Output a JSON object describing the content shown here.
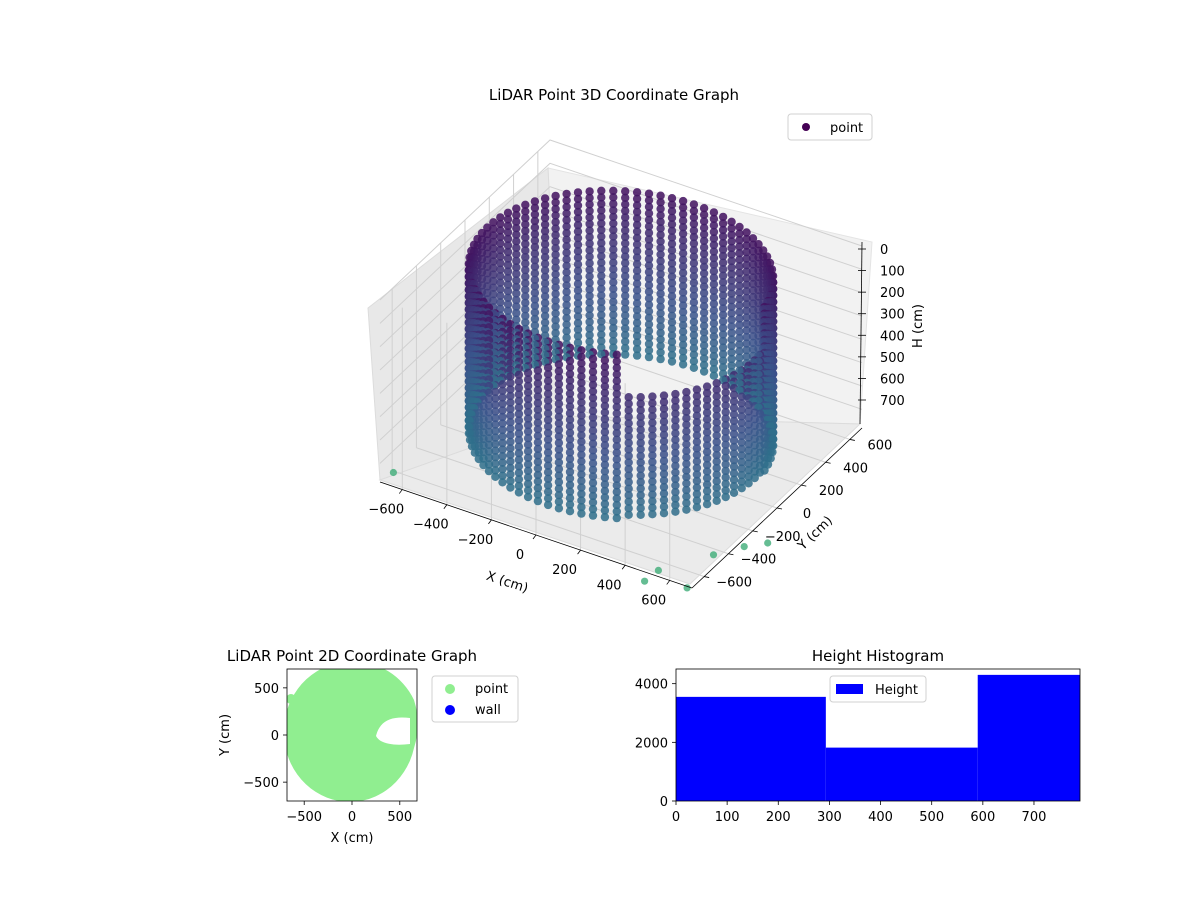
{
  "chart_data": [
    {
      "type": "scatter3d",
      "title": "LiDAR Point 3D Coordinate Graph",
      "xlabel": "X (cm)",
      "ylabel": "Y (cm)",
      "zlabel": "H (cm)",
      "xlim": [
        -700,
        700
      ],
      "ylim": [
        -700,
        700
      ],
      "zlim": [
        0,
        780
      ],
      "z_inverted": true,
      "xticks": [
        "−600",
        "−400",
        "−200",
        "0",
        "200",
        "400",
        "600"
      ],
      "yticks": [
        "−600",
        "−400",
        "−200",
        "0",
        "200",
        "400",
        "600"
      ],
      "zticks": [
        "0",
        "100",
        "200",
        "300",
        "400",
        "500",
        "600",
        "700"
      ],
      "legend": {
        "placement": "top-right",
        "entries": [
          {
            "label": "point",
            "color": "#440154"
          }
        ]
      },
      "colormap": "viridis",
      "series": [
        {
          "name": "point",
          "shape": "cylindrical wall",
          "radius_cm": 600,
          "height_range_cm": [
            0,
            700
          ],
          "gap_angle_deg": [
            -60,
            5
          ]
        }
      ]
    },
    {
      "type": "scatter",
      "title": "LiDAR Point 2D Coordinate Graph",
      "xlabel": "X (cm)",
      "ylabel": "Y (cm)",
      "xlim": [
        -680,
        680
      ],
      "ylim": [
        -700,
        700
      ],
      "xticks": [
        "−500",
        "0",
        "500"
      ],
      "yticks": [
        "−500",
        "0",
        "500"
      ],
      "legend": {
        "placement": "outside-right",
        "entries": [
          {
            "label": "point",
            "color": "#90ee90"
          },
          {
            "label": "wall",
            "color": "#0000ff"
          }
        ]
      }
    },
    {
      "type": "bar",
      "title": "Height Histogram",
      "xlim": [
        0,
        790
      ],
      "ylim": [
        0,
        4500
      ],
      "xticks": [
        "0",
        "100",
        "200",
        "300",
        "400",
        "500",
        "600",
        "700"
      ],
      "yticks": [
        "0",
        "2000",
        "4000"
      ],
      "bins": [
        {
          "from": 0,
          "to": 293,
          "value": 3550
        },
        {
          "from": 293,
          "to": 590,
          "value": 1820
        },
        {
          "from": 590,
          "to": 790,
          "value": 4300
        }
      ],
      "color": "#0000ff",
      "legend": {
        "placement": "top-center",
        "entries": [
          {
            "label": "Height",
            "color": "#0000ff"
          }
        ]
      }
    }
  ]
}
